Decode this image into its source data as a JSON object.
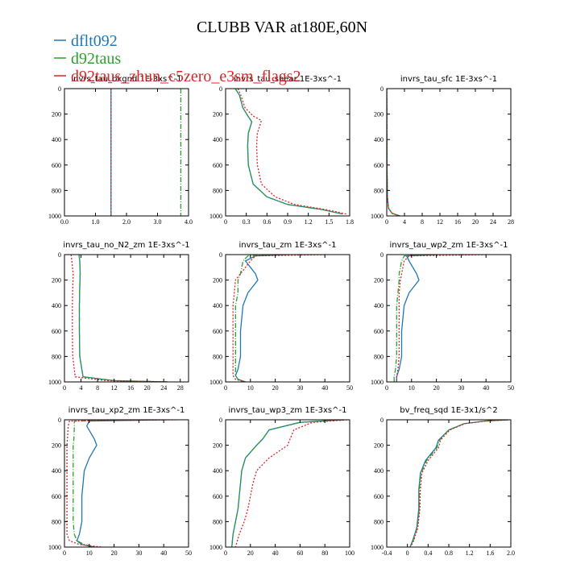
{
  "title": "CLUBB VAR at180E,60N",
  "legend": [
    {
      "name": "dflt092",
      "color": "#1f77b4",
      "dash": ""
    },
    {
      "name": "d92taus",
      "color": "#2ca02c",
      "dash": "6,2,1,2"
    },
    {
      "name": "d92taus_zhun_c5zero_e3sm_flags2",
      "color": "#d62728",
      "dash": "2,2"
    }
  ],
  "chart_data": [
    {
      "type": "line",
      "title": "invrs_tau_bkgnd   1E-3xs^-1",
      "xlim": [
        0,
        4
      ],
      "ylim": [
        1000,
        0
      ],
      "xticks": [
        0,
        1,
        2,
        3,
        4
      ],
      "xticklabels": [
        "0.0",
        "1.0",
        "2.0",
        "3.0",
        "4.0"
      ],
      "yticks": [
        0,
        200,
        400,
        600,
        800,
        1000
      ],
      "yticklabels": [
        "0",
        "200",
        "400",
        "600",
        "800",
        "1000"
      ],
      "series": [
        {
          "name": "dflt092",
          "x": [
            1.5,
            1.5
          ],
          "y": [
            0,
            1000
          ]
        },
        {
          "name": "d92taus",
          "x": [
            3.75,
            3.75
          ],
          "y": [
            0,
            1000
          ]
        },
        {
          "name": "d92taus_zhun_c5zero_e3sm_flags2",
          "x": [
            1.5,
            1.5
          ],
          "y": [
            0,
            1000
          ]
        }
      ]
    },
    {
      "type": "line",
      "title": "invrs_tau_shear   1E-3xs^-1",
      "xlim": [
        0,
        1.8
      ],
      "ylim": [
        1000,
        0
      ],
      "xticks": [
        0,
        0.3,
        0.6,
        0.9,
        1.2,
        1.5,
        1.8
      ],
      "xticklabels": [
        "0",
        "0.3",
        "0.6",
        "0.9",
        "1.2",
        "1.5",
        "1.8"
      ],
      "yticks": [
        0,
        200,
        400,
        600,
        800,
        1000
      ],
      "yticklabels": [
        "0",
        "200",
        "400",
        "600",
        "800",
        "1000"
      ],
      "series": [
        {
          "name": "dflt092",
          "x": [
            0.14,
            0.2,
            0.25,
            0.33,
            0.38,
            0.33,
            0.32,
            0.33,
            0.4,
            0.6,
            0.9,
            1.4,
            1.7
          ],
          "y": [
            0,
            50,
            150,
            220,
            260,
            350,
            450,
            600,
            750,
            850,
            910,
            950,
            985
          ]
        },
        {
          "name": "d92taus",
          "x": [
            0.14,
            0.2,
            0.25,
            0.33,
            0.38,
            0.33,
            0.32,
            0.33,
            0.4,
            0.6,
            0.9,
            1.4,
            1.7
          ],
          "y": [
            0,
            50,
            150,
            220,
            260,
            350,
            450,
            600,
            750,
            850,
            910,
            950,
            985
          ]
        },
        {
          "name": "d92taus_zhun_c5zero_e3sm_flags2",
          "x": [
            0.18,
            0.22,
            0.28,
            0.4,
            0.52,
            0.46,
            0.45,
            0.46,
            0.52,
            0.72,
            1.0,
            1.45,
            1.75
          ],
          "y": [
            0,
            50,
            150,
            215,
            250,
            350,
            450,
            600,
            750,
            850,
            910,
            950,
            985
          ]
        }
      ]
    },
    {
      "type": "line",
      "title": "invrs_tau_sfc   1E-3xs^-1",
      "xlim": [
        0,
        28
      ],
      "ylim": [
        1000,
        0
      ],
      "xticks": [
        0,
        4,
        8,
        12,
        16,
        20,
        24,
        28
      ],
      "xticklabels": [
        "0",
        "4",
        "8",
        "12",
        "16",
        "20",
        "24",
        "28"
      ],
      "yticks": [
        0,
        200,
        400,
        600,
        800,
        1000
      ],
      "yticklabels": [
        "0",
        "200",
        "400",
        "600",
        "800",
        "1000"
      ],
      "series": [
        {
          "name": "dflt092",
          "x": [
            0,
            0.05,
            0.15,
            0.4,
            1.2,
            3.0
          ],
          "y": [
            0,
            600,
            850,
            940,
            980,
            1000
          ]
        },
        {
          "name": "d92taus",
          "x": [
            0,
            0.05,
            0.15,
            0.4,
            1.2,
            3.0
          ],
          "y": [
            0,
            600,
            850,
            940,
            980,
            1000
          ]
        },
        {
          "name": "d92taus_zhun_c5zero_e3sm_flags2",
          "x": [
            0,
            0.05,
            0.15,
            0.4,
            1.2,
            3.0
          ],
          "y": [
            0,
            600,
            850,
            940,
            980,
            1000
          ]
        }
      ]
    },
    {
      "type": "line",
      "title": "invrs_tau_no_N2_zm   1E-3xs^-1",
      "xlim": [
        0,
        30
      ],
      "ylim": [
        1000,
        0
      ],
      "xticks": [
        0,
        4,
        8,
        12,
        16,
        20,
        24,
        28
      ],
      "xticklabels": [
        "0",
        "4",
        "8",
        "12",
        "16",
        "20",
        "24",
        "28"
      ],
      "yticks": [
        0,
        200,
        400,
        600,
        800,
        1000
      ],
      "yticklabels": [
        "0",
        "200",
        "400",
        "600",
        "800",
        "1000"
      ],
      "series": [
        {
          "name": "dflt092",
          "x": [
            3.5,
            3.7,
            3.8,
            3.7,
            3.6,
            3.6,
            3.7,
            4.5,
            12,
            25
          ],
          "y": [
            0,
            50,
            150,
            250,
            400,
            600,
            800,
            960,
            990,
            1000
          ]
        },
        {
          "name": "d92taus",
          "x": [
            3.5,
            3.7,
            3.8,
            3.7,
            3.6,
            3.6,
            3.7,
            4.5,
            12,
            25
          ],
          "y": [
            0,
            50,
            150,
            250,
            400,
            600,
            800,
            960,
            990,
            1000
          ]
        },
        {
          "name": "d92taus_zhun_c5zero_e3sm_flags2",
          "x": [
            1.6,
            1.8,
            2.1,
            2.0,
            1.9,
            1.9,
            2.0,
            2.6,
            10,
            25
          ],
          "y": [
            0,
            50,
            150,
            250,
            400,
            600,
            800,
            960,
            990,
            1000
          ]
        }
      ]
    },
    {
      "type": "line",
      "title": "invrs_tau_zm   1E-3xs^-1",
      "xlim": [
        0,
        50
      ],
      "ylim": [
        1000,
        0
      ],
      "xticks": [
        0,
        10,
        20,
        30,
        40,
        50
      ],
      "xticklabels": [
        "0",
        "10",
        "20",
        "30",
        "40",
        "50"
      ],
      "yticks": [
        0,
        200,
        400,
        600,
        800,
        1000
      ],
      "yticklabels": [
        "0",
        "200",
        "400",
        "600",
        "800",
        "1000"
      ],
      "series": [
        {
          "name": "dflt092",
          "x": [
            25,
            12,
            8,
            12,
            13,
            9,
            7,
            6,
            6,
            5,
            4,
            5,
            8
          ],
          "y": [
            0,
            10,
            50,
            150,
            200,
            300,
            400,
            600,
            800,
            900,
            950,
            980,
            1000
          ]
        },
        {
          "name": "d92taus",
          "x": [
            20,
            9,
            7,
            6,
            5,
            5,
            4,
            4,
            4,
            4,
            4,
            5,
            8
          ],
          "y": [
            0,
            10,
            50,
            150,
            200,
            300,
            400,
            600,
            800,
            900,
            950,
            980,
            1000
          ]
        },
        {
          "name": "d92taus_zhun_c5zero_e3sm_flags2",
          "x": [
            40,
            12,
            10,
            6,
            4,
            3.5,
            3,
            3,
            3,
            3,
            3,
            4,
            8
          ],
          "y": [
            0,
            10,
            50,
            150,
            200,
            300,
            400,
            600,
            800,
            900,
            950,
            980,
            1000
          ]
        }
      ]
    },
    {
      "type": "line",
      "title": "invrs_tau_wp2_zm   1E-3xs^-1",
      "xlim": [
        0,
        50
      ],
      "ylim": [
        1000,
        0
      ],
      "xticks": [
        0,
        10,
        20,
        30,
        40,
        50
      ],
      "xticklabels": [
        "0",
        "10",
        "20",
        "30",
        "40",
        "50"
      ],
      "yticks": [
        0,
        200,
        400,
        600,
        800,
        1000
      ],
      "yticklabels": [
        "0",
        "200",
        "400",
        "600",
        "800",
        "1000"
      ],
      "series": [
        {
          "name": "dflt092",
          "x": [
            20,
            8,
            9,
            12,
            13,
            9,
            7,
            6,
            6,
            5,
            4,
            4
          ],
          "y": [
            0,
            10,
            50,
            150,
            200,
            300,
            400,
            600,
            800,
            900,
            960,
            1000
          ]
        },
        {
          "name": "d92taus",
          "x": [
            15,
            7,
            6,
            5,
            5,
            4.5,
            4,
            4,
            4,
            3.5,
            3,
            3
          ],
          "y": [
            0,
            10,
            50,
            150,
            200,
            300,
            400,
            600,
            800,
            900,
            960,
            1000
          ]
        },
        {
          "name": "d92taus_zhun_c5zero_e3sm_flags2",
          "x": [
            40,
            9,
            7,
            6,
            5.5,
            5,
            5,
            5,
            5,
            4.5,
            4,
            4
          ],
          "y": [
            0,
            10,
            50,
            150,
            200,
            300,
            400,
            600,
            800,
            900,
            960,
            1000
          ]
        }
      ]
    },
    {
      "type": "line",
      "title": "invrs_tau_xp2_zm   1E-3xs^-1",
      "xlim": [
        0,
        50
      ],
      "ylim": [
        1000,
        0
      ],
      "xticks": [
        0,
        10,
        20,
        30,
        40,
        50
      ],
      "xticklabels": [
        "0",
        "10",
        "20",
        "30",
        "40",
        "50"
      ],
      "yticks": [
        0,
        200,
        400,
        600,
        800,
        1000
      ],
      "yticklabels": [
        "0",
        "200",
        "400",
        "600",
        "800",
        "1000"
      ],
      "series": [
        {
          "name": "dflt092",
          "x": [
            40,
            10,
            9,
            12,
            13,
            10,
            8,
            7,
            7,
            6,
            5,
            7,
            12
          ],
          "y": [
            0,
            10,
            50,
            150,
            200,
            300,
            400,
            600,
            800,
            900,
            950,
            980,
            1000
          ]
        },
        {
          "name": "d92taus",
          "x": [
            30,
            4,
            4,
            3.8,
            3.5,
            3.5,
            3.5,
            3.5,
            3.5,
            4,
            5,
            8,
            12
          ],
          "y": [
            0,
            10,
            50,
            150,
            200,
            300,
            400,
            600,
            800,
            900,
            950,
            980,
            1000
          ]
        },
        {
          "name": "d92taus_zhun_c5zero_e3sm_flags2",
          "x": [
            45,
            2,
            1.5,
            1.2,
            1,
            1,
            1,
            1,
            1,
            1,
            2,
            6,
            15
          ],
          "y": [
            0,
            10,
            50,
            150,
            200,
            300,
            400,
            600,
            800,
            900,
            950,
            980,
            1000
          ]
        }
      ]
    },
    {
      "type": "line",
      "title": "invrs_tau_wp3_zm   1E-3xs^-1",
      "xlim": [
        0,
        100
      ],
      "ylim": [
        1000,
        0
      ],
      "xticks": [
        0,
        20,
        40,
        60,
        80,
        100
      ],
      "xticklabels": [
        "0",
        "20",
        "40",
        "60",
        "80",
        "100"
      ],
      "yticks": [
        0,
        200,
        400,
        600,
        800,
        1000
      ],
      "yticklabels": [
        "0",
        "200",
        "400",
        "600",
        "800",
        "1000"
      ],
      "series": [
        {
          "name": "dflt092",
          "x": [
            95,
            60,
            35,
            30,
            25,
            16,
            13,
            12,
            11,
            10,
            8,
            6,
            5
          ],
          "y": [
            0,
            20,
            80,
            150,
            200,
            300,
            400,
            500,
            600,
            700,
            800,
            900,
            1000
          ]
        },
        {
          "name": "d92taus",
          "x": [
            95,
            60,
            35,
            30,
            25,
            16,
            13,
            12,
            11,
            10,
            8,
            6,
            5
          ],
          "y": [
            0,
            20,
            80,
            150,
            200,
            300,
            400,
            500,
            600,
            700,
            800,
            900,
            1000
          ]
        },
        {
          "name": "d92taus_zhun_c5zero_e3sm_flags2",
          "x": [
            98,
            70,
            55,
            52,
            50,
            35,
            25,
            22,
            20,
            18,
            15,
            11,
            8
          ],
          "y": [
            0,
            20,
            80,
            150,
            200,
            300,
            400,
            500,
            600,
            700,
            800,
            900,
            1000
          ]
        }
      ]
    },
    {
      "type": "line",
      "title": "bv_freq_sqd   1E-3x1/s^2",
      "xlim": [
        -0.4,
        2.0
      ],
      "ylim": [
        1000,
        0
      ],
      "xticks": [
        -0.4,
        0,
        0.4,
        0.8,
        1.2,
        1.6,
        2.0
      ],
      "xticklabels": [
        "-0.4",
        "0",
        "0.4",
        "0.8",
        "1.2",
        "1.6",
        "2.0"
      ],
      "yticks": [
        0,
        200,
        400,
        600,
        800,
        1000
      ],
      "yticklabels": [
        "0",
        "200",
        "400",
        "600",
        "800",
        "1000"
      ],
      "series": [
        {
          "name": "dflt092",
          "x": [
            1.95,
            1.5,
            1.1,
            0.8,
            0.6,
            0.55,
            0.35,
            0.25,
            0.22,
            0.22,
            0.18,
            0.1,
            0.05
          ],
          "y": [
            0,
            10,
            30,
            80,
            160,
            220,
            320,
            420,
            550,
            700,
            850,
            950,
            1000
          ]
        },
        {
          "name": "d92taus",
          "x": [
            1.95,
            1.5,
            1.1,
            0.8,
            0.62,
            0.57,
            0.37,
            0.26,
            0.23,
            0.23,
            0.19,
            0.11,
            0.05
          ],
          "y": [
            0,
            10,
            30,
            80,
            160,
            220,
            320,
            420,
            550,
            700,
            850,
            950,
            1000
          ]
        },
        {
          "name": "d92taus_zhun_c5zero_e3sm_flags2",
          "x": [
            1.95,
            1.5,
            1.12,
            0.82,
            0.64,
            0.6,
            0.4,
            0.28,
            0.25,
            0.24,
            0.2,
            0.12,
            0.06
          ],
          "y": [
            0,
            10,
            30,
            80,
            160,
            220,
            320,
            420,
            550,
            700,
            850,
            950,
            1000
          ]
        }
      ]
    }
  ]
}
